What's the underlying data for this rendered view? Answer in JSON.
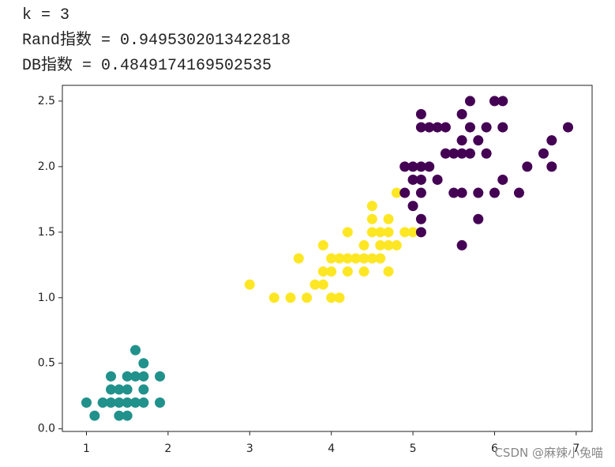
{
  "output_lines": [
    "k = 3",
    "Rand指数 = 0.9495302013422818",
    "DB指数 = 0.4849174169502535"
  ],
  "watermark": "CSDN @麻辣小兔喵",
  "chart_data": {
    "type": "scatter",
    "xlim": [
      0.705,
      7.195
    ],
    "ylim": [
      -0.02,
      2.62
    ],
    "xticks": [
      1,
      2,
      3,
      4,
      5,
      6,
      7
    ],
    "yticks": [
      {
        "value": 0,
        "label": "0.0"
      },
      0.5,
      {
        "value": 1,
        "label": "1.0"
      },
      1.5,
      {
        "value": 2,
        "label": "2.0"
      },
      2.5
    ],
    "grid": false,
    "series": [
      {
        "color": "#21918c",
        "x": [
          1.0,
          1.1,
          1.2,
          1.3,
          1.3,
          1.3,
          1.4,
          1.4,
          1.4,
          1.5,
          1.5,
          1.5,
          1.5,
          1.6,
          1.6,
          1.6,
          1.7,
          1.7,
          1.7,
          1.7,
          1.9,
          1.9
        ],
        "values": [
          0.2,
          0.1,
          0.2,
          0.2,
          0.3,
          0.4,
          0.1,
          0.2,
          0.3,
          0.1,
          0.2,
          0.3,
          0.4,
          0.2,
          0.4,
          0.6,
          0.2,
          0.3,
          0.4,
          0.5,
          0.2,
          0.4
        ]
      },
      {
        "color": "#fde725",
        "x": [
          3.0,
          3.3,
          3.5,
          3.6,
          3.7,
          3.8,
          3.9,
          3.9,
          3.9,
          4.0,
          4.0,
          4.0,
          4.1,
          4.1,
          4.2,
          4.2,
          4.2,
          4.3,
          4.4,
          4.4,
          4.4,
          4.5,
          4.5,
          4.5,
          4.5,
          4.6,
          4.6,
          4.6,
          4.7,
          4.7,
          4.7,
          4.7,
          4.8,
          4.8,
          4.9,
          5.0
        ],
        "values": [
          1.1,
          1.0,
          1.0,
          1.3,
          1.0,
          1.1,
          1.1,
          1.2,
          1.4,
          1.0,
          1.2,
          1.3,
          1.0,
          1.3,
          1.2,
          1.3,
          1.5,
          1.3,
          1.2,
          1.3,
          1.4,
          1.3,
          1.5,
          1.6,
          1.7,
          1.3,
          1.4,
          1.5,
          1.2,
          1.4,
          1.5,
          1.6,
          1.4,
          1.8,
          1.5,
          1.5
        ]
      },
      {
        "color": "#440154",
        "x": [
          4.9,
          4.9,
          5.0,
          5.0,
          5.0,
          5.1,
          5.1,
          5.1,
          5.1,
          5.1,
          5.1,
          5.1,
          5.2,
          5.2,
          5.3,
          5.3,
          5.4,
          5.4,
          5.5,
          5.5,
          5.6,
          5.6,
          5.6,
          5.6,
          5.6,
          5.7,
          5.7,
          5.7,
          5.8,
          5.8,
          5.8,
          5.9,
          5.9,
          6.0,
          6.0,
          6.1,
          6.1,
          6.1,
          6.3,
          6.4,
          6.6,
          6.7,
          6.7,
          6.9
        ],
        "values": [
          1.8,
          2.0,
          1.7,
          1.9,
          2.0,
          1.5,
          1.6,
          1.8,
          1.9,
          2.0,
          2.3,
          2.4,
          2.0,
          2.3,
          1.9,
          2.3,
          2.1,
          2.3,
          1.8,
          2.1,
          1.4,
          1.8,
          2.1,
          2.2,
          2.4,
          2.1,
          2.3,
          2.5,
          1.6,
          1.8,
          2.2,
          2.1,
          2.3,
          1.8,
          2.5,
          1.9,
          2.3,
          2.5,
          1.8,
          2.0,
          2.1,
          2.0,
          2.2,
          2.3
        ]
      }
    ]
  }
}
